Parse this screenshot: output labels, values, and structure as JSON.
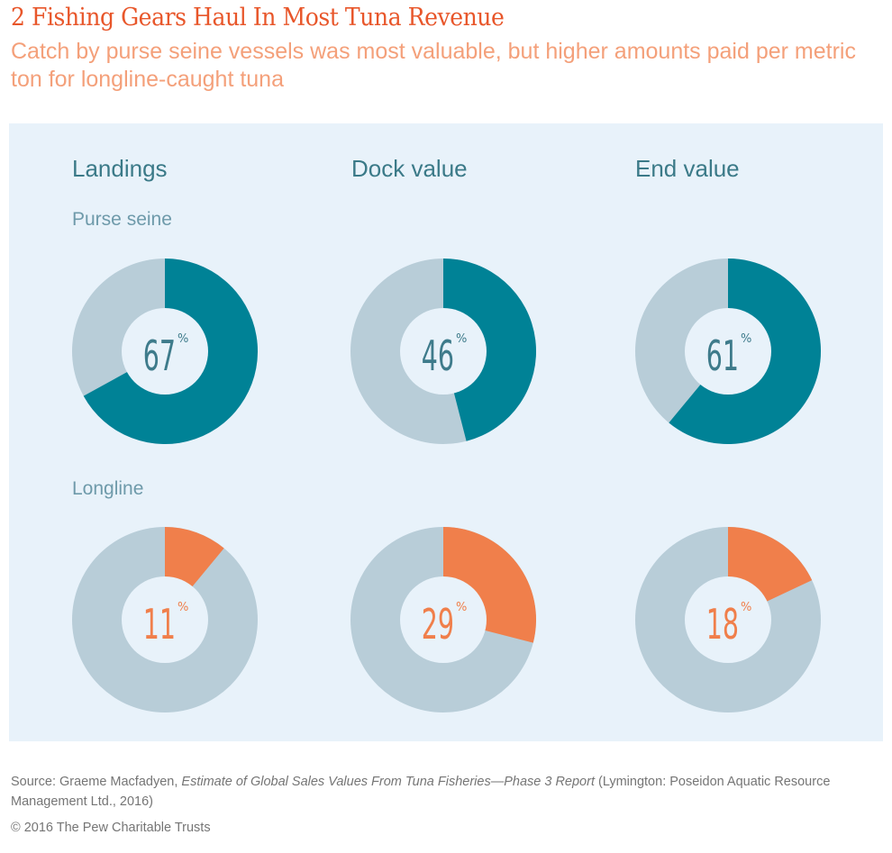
{
  "title": "2 Fishing Gears Haul In Most Tuna Revenue",
  "subtitle": "Catch by purse seine vessels was most valuable, but higher amounts paid per metric ton for longline-caught tuna",
  "source": {
    "prefix": "Source: Graeme Macfadyen, ",
    "italic": "Estimate of Global Sales Values From Tuna Fisheries—Phase 3 Report",
    "suffix": " (Lymington: Poseidon Aquatic Resource Management Ltd., 2016)"
  },
  "copyright": "© 2016 The Pew Charitable Trusts",
  "chart_data": {
    "type": "pie",
    "columns": [
      "Landings",
      "Dock value",
      "End value"
    ],
    "rows": [
      "Purse seine",
      "Longline"
    ],
    "percent_sign": "%",
    "series": [
      {
        "name": "Purse seine",
        "values": [
          67,
          46,
          61
        ],
        "color": "#008296",
        "label_color": "#3e7b8b"
      },
      {
        "name": "Longline",
        "values": [
          11,
          29,
          18
        ],
        "color": "#f07f4b",
        "label_color": "#f07f4b"
      }
    ],
    "remainder_color": "#b8cdd8",
    "background_color": "#e8f2fa"
  }
}
